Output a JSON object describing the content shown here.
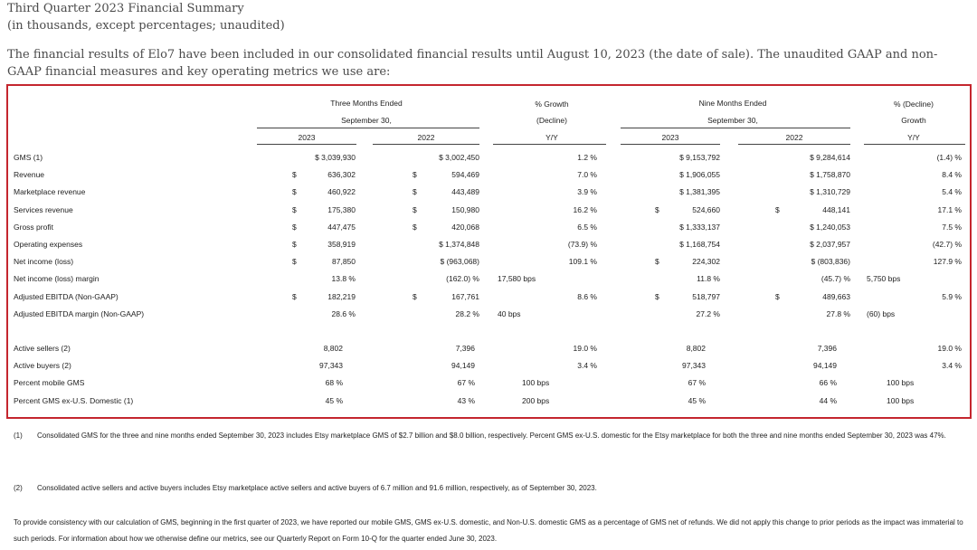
{
  "heading": {
    "title": "Third Quarter 2023 Financial Summary",
    "subtitle": "(in thousands, except percentages; unaudited)",
    "intro": "The financial results of Elo7 have been included in our consolidated financial results until August 10, 2023 (the date of sale). The unaudited GAAP and non-GAAP financial measures and key operating metrics we use are:"
  },
  "table": {
    "headers": {
      "three_months_1": "Three Months Ended",
      "three_months_2": "September 30,",
      "growth_1": "% Growth",
      "growth_2": "(Decline)",
      "growth_3": "Y/Y",
      "nine_months_1": "Nine Months Ended",
      "nine_months_2": "September 30,",
      "decline_1": "% (Decline)",
      "decline_2": "Growth",
      "decline_3": "Y/Y",
      "y2023a": "2023",
      "y2022a": "2022",
      "y2023b": "2023",
      "y2022b": "2022"
    },
    "rows": [
      {
        "label": "GMS (1)",
        "q23d": "",
        "q23": "$ 3,039,930",
        "q22d": "",
        "q22": "$ 3,002,450",
        "g3": "1.2 %",
        "g3b": "",
        "n23d": "",
        "n23": "$ 9,153,792",
        "n22d": "",
        "n22": "$ 9,284,614",
        "g9": "(1.4) %",
        "g9b": ""
      },
      {
        "label": "Revenue",
        "q23d": "$",
        "q23": "636,302",
        "q22d": "$",
        "q22": "594,469",
        "g3": "7.0 %",
        "g3b": "",
        "n23d": "",
        "n23": "$ 1,906,055",
        "n22d": "",
        "n22": "$ 1,758,870",
        "g9": "8.4 %",
        "g9b": ""
      },
      {
        "label": "Marketplace revenue",
        "q23d": "$",
        "q23": "460,922",
        "q22d": "$",
        "q22": "443,489",
        "g3": "3.9 %",
        "g3b": "",
        "n23d": "",
        "n23": "$ 1,381,395",
        "n22d": "",
        "n22": "$ 1,310,729",
        "g9": "5.4 %",
        "g9b": ""
      },
      {
        "label": "Services revenue",
        "q23d": "$",
        "q23": "175,380",
        "q22d": "$",
        "q22": "150,980",
        "g3": "16.2 %",
        "g3b": "",
        "n23d": "$",
        "n23": "524,660",
        "n22d": "$",
        "n22": "448,141",
        "g9": "17.1 %",
        "g9b": ""
      },
      {
        "label": "Gross profit",
        "q23d": "$",
        "q23": "447,475",
        "q22d": "$",
        "q22": "420,068",
        "g3": "6.5 %",
        "g3b": "",
        "n23d": "",
        "n23": "$ 1,333,137",
        "n22d": "",
        "n22": "$ 1,240,053",
        "g9": "7.5 %",
        "g9b": ""
      },
      {
        "label": "Operating expenses",
        "q23d": "$",
        "q23": "358,919",
        "q22d": "",
        "q22": "$ 1,374,848",
        "g3": "(73.9) %",
        "g3b": "",
        "n23d": "",
        "n23": "$ 1,168,754",
        "n22d": "",
        "n22": "$ 2,037,957",
        "g9": "(42.7) %",
        "g9b": ""
      },
      {
        "label": "Net income (loss)",
        "q23d": "$",
        "q23": "87,850",
        "q22d": "",
        "q22": "$ (963,068)",
        "g3": "109.1 %",
        "g3b": "",
        "n23d": "$",
        "n23": "224,302",
        "n22d": "",
        "n22": "$ (803,836)",
        "g9": "127.9 %",
        "g9b": ""
      },
      {
        "label": "Net income (loss) margin",
        "q23d": "",
        "q23": "13.8 %",
        "q22d": "",
        "q22": "(162.0) %",
        "g3": "",
        "g3b": "17,580  bps",
        "n23d": "",
        "n23": "11.8 %",
        "n22d": "",
        "n22": "(45.7) %",
        "g9": "",
        "g9b": "5,750  bps"
      },
      {
        "label": "Adjusted EBITDA (Non-GAAP)",
        "q23d": "$",
        "q23": "182,219",
        "q22d": "$",
        "q22": "167,761",
        "g3": "8.6 %",
        "g3b": "",
        "n23d": "$",
        "n23": "518,797",
        "n22d": "$",
        "n22": "489,663",
        "g9": "5.9 %",
        "g9b": ""
      },
      {
        "label": "Adjusted EBITDA margin (Non-GAAP)",
        "q23d": "",
        "q23": "28.6 %",
        "q22d": "",
        "q22": "28.2 %",
        "g3": "",
        "g3b": "40  bps",
        "n23d": "",
        "n23": "27.2 %",
        "n22d": "",
        "n22": "27.8 %",
        "g9": "",
        "g9b": "(60)  bps"
      }
    ],
    "metrics": [
      {
        "label": "Active sellers (2)",
        "q23": "8,802",
        "q22": "7,396",
        "g3": "19.0 %",
        "g3b": "",
        "n23": "8,802",
        "n22": "7,396",
        "g9": "19.0 %",
        "g9b": ""
      },
      {
        "label": "Active buyers (2)",
        "q23": "97,343",
        "q22": "94,149",
        "g3": "3.4 %",
        "g3b": "",
        "n23": "97,343",
        "n22": "94,149",
        "g9": "3.4 %",
        "g9b": ""
      },
      {
        "label": "Percent mobile GMS",
        "q23": "68 %",
        "q22": "67 %",
        "g3": "",
        "g3b": "100  bps",
        "n23": "67 %",
        "n22": "66 %",
        "g9": "",
        "g9b": "100  bps"
      },
      {
        "label": "Percent GMS ex-U.S. Domestic (1)",
        "q23": "45 %",
        "q22": "43 %",
        "g3": "",
        "g3b": "200  bps",
        "n23": "45 %",
        "n22": "44 %",
        "g9": "",
        "g9b": "100  bps"
      }
    ]
  },
  "footnotes": {
    "fn1_mark": "(1)",
    "fn1_text": "Consolidated GMS for the three and nine months ended September 30, 2023 includes Etsy marketplace GMS of $2.7 billion and $8.0 billion, respectively. Percent GMS ex-U.S. domestic for the Etsy marketplace for both the three and nine months ended September 30, 2023 was 47%.",
    "fn2_mark": "(2)",
    "fn2_text": "Consolidated active sellers and active buyers includes Etsy marketplace active sellers and active buyers of 6.7 million and 91.6 million, respectively, as of September 30, 2023.",
    "closing": "To provide consistency with our calculation of GMS, beginning in the first quarter of 2023, we have reported our mobile GMS, GMS ex-U.S. domestic, and Non-U.S. domestic GMS as a percentage of GMS net of refunds. We did not apply this change to prior periods as the impact was immaterial to such periods. For information about how we otherwise define our metrics, see our Quarterly Report on Form 10-Q for the quarter ended June 30, 2023."
  }
}
